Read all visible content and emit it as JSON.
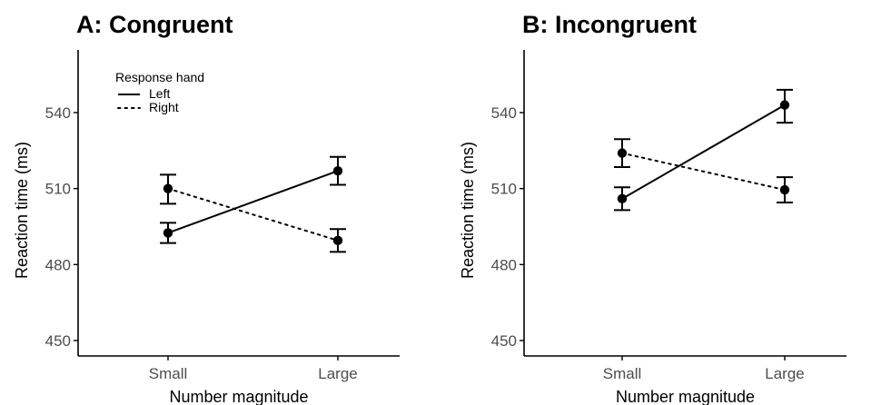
{
  "chart_data": [
    {
      "type": "line",
      "title": "A: Congruent",
      "xlabel": "Number magnitude",
      "ylabel": "Reaction time (ms)",
      "categories": [
        "Small",
        "Large"
      ],
      "ylim": [
        445,
        558
      ],
      "yticks": [
        450,
        480,
        510,
        540
      ],
      "grid": false,
      "legend": {
        "title": "Response hand",
        "position": "top-left",
        "entries": [
          "Left",
          "Right"
        ]
      },
      "series": [
        {
          "name": "Left",
          "line_style": "solid",
          "values": [
            492.5,
            517
          ],
          "error_low": [
            488.5,
            511.5
          ],
          "error_high": [
            496.5,
            522.5
          ]
        },
        {
          "name": "Right",
          "line_style": "dotted",
          "values": [
            510,
            489.5
          ],
          "error_low": [
            504,
            485
          ],
          "error_high": [
            515.5,
            494
          ]
        }
      ]
    },
    {
      "type": "line",
      "title": "B: Incongruent",
      "xlabel": "Number magnitude",
      "ylabel": "Reaction time (ms)",
      "categories": [
        "Small",
        "Large"
      ],
      "ylim": [
        445,
        558
      ],
      "yticks": [
        450,
        480,
        510,
        540
      ],
      "grid": false,
      "legend": null,
      "series": [
        {
          "name": "Left",
          "line_style": "solid",
          "values": [
            506,
            543
          ],
          "error_low": [
            501.5,
            536
          ],
          "error_high": [
            510.5,
            549
          ]
        },
        {
          "name": "Right",
          "line_style": "dotted",
          "values": [
            524,
            509.5
          ],
          "error_low": [
            518.5,
            504.5
          ],
          "error_high": [
            529.5,
            514.5
          ]
        }
      ]
    }
  ],
  "colors": {
    "data": "#000000",
    "tick_text": "#4d4d4d",
    "background": "#ffffff"
  }
}
